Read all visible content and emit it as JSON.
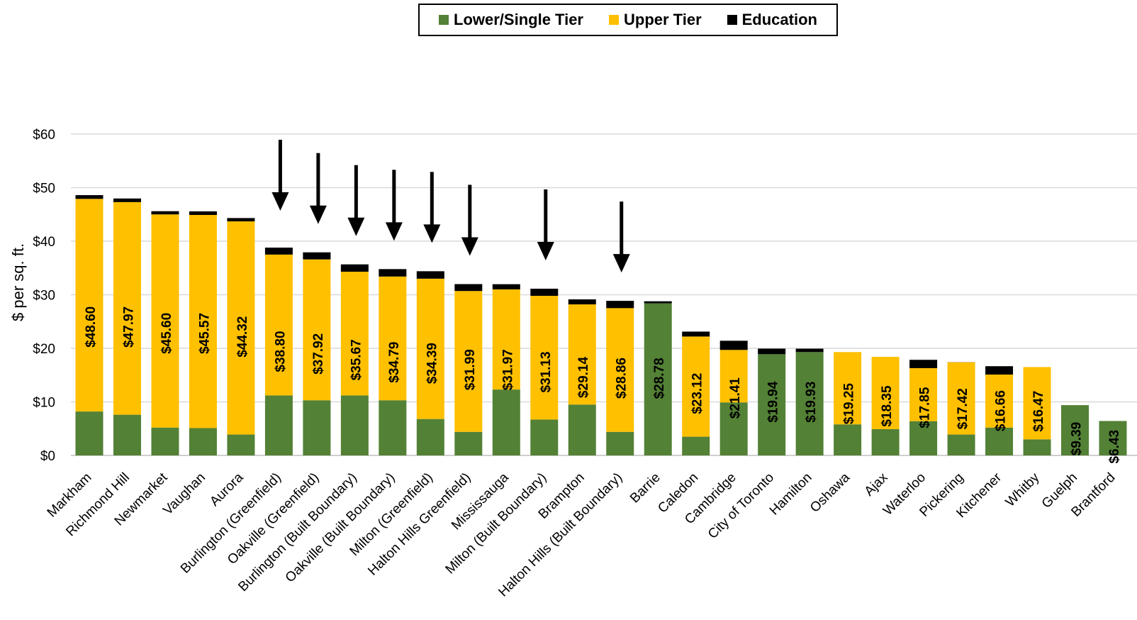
{
  "legend": {
    "items": [
      {
        "label": "Lower/Single Tier",
        "color": "#538135"
      },
      {
        "label": "Upper Tier",
        "color": "#FFC000"
      },
      {
        "label": "Education",
        "color": "#000000"
      }
    ]
  },
  "chart_data": {
    "type": "bar",
    "stacked": true,
    "title": "",
    "xlabel": "",
    "ylabel": "$ per sq. ft.",
    "ylim": [
      0,
      60
    ],
    "yticks": [
      "$0",
      "$10",
      "$20",
      "$30",
      "$40",
      "$50",
      "$60"
    ],
    "grid": true,
    "legend_position": "top",
    "categories": [
      "Markham",
      "Richmond Hill",
      "Newmarket",
      "Vaughan",
      "Aurora",
      "Burlington (Greenfield)",
      "Oakville (Greenfield)",
      "Burlington (Built Boundary)",
      "Oakville (Built Boundary)",
      "Milton (Greenfield)",
      "Halton Hills Greenfield)",
      "Mississauga",
      "Milton (Built Boundary)",
      "Brampton",
      "Halton Hills (Built Boundary)",
      "Barrie",
      "Caledon",
      "Cambridge",
      "City of Toronto",
      "Hamilton",
      "Oshawa",
      "Ajax",
      "Waterloo",
      "Pickering",
      "Kitchener",
      "Whitby",
      "Guelph",
      "Brantford"
    ],
    "series": [
      {
        "name": "Lower/Single Tier",
        "color": "#538135",
        "values": [
          8.2,
          7.6,
          5.2,
          5.1,
          3.9,
          11.2,
          10.3,
          11.2,
          10.3,
          6.8,
          4.4,
          12.3,
          6.7,
          9.5,
          4.4,
          28.4,
          3.5,
          9.9,
          18.9,
          19.3,
          5.8,
          4.9,
          6.4,
          3.9,
          5.2,
          3.0,
          9.39,
          6.43
        ]
      },
      {
        "name": "Upper Tier",
        "color": "#FFC000",
        "values": [
          39.7,
          39.7,
          39.8,
          39.8,
          39.8,
          26.3,
          26.3,
          23.1,
          23.1,
          26.2,
          26.3,
          18.7,
          23.1,
          18.7,
          23.1,
          0,
          18.7,
          9.8,
          0,
          0,
          13.5,
          13.5,
          9.9,
          13.5,
          9.9,
          13.5,
          0,
          0
        ]
      },
      {
        "name": "Education",
        "color": "#000000",
        "values": [
          0.7,
          0.67,
          0.6,
          0.67,
          0.62,
          1.3,
          1.32,
          1.37,
          1.39,
          1.39,
          1.29,
          0.97,
          1.33,
          0.94,
          1.36,
          0.38,
          0.92,
          1.71,
          1.04,
          0.63,
          0,
          0,
          1.55,
          0.02,
          1.56,
          0,
          0,
          0
        ]
      }
    ],
    "totals": [
      "$48.60",
      "$47.97",
      "$45.60",
      "$45.57",
      "$44.32",
      "$38.80",
      "$37.92",
      "$35.67",
      "$34.79",
      "$34.39",
      "$31.99",
      "$31.97",
      "$31.13",
      "$29.14",
      "$28.86",
      "$28.78",
      "$23.12",
      "$21.41",
      "$19.94",
      "$19.93",
      "$19.25",
      "$18.35",
      "$17.85",
      "$17.42",
      "$16.66",
      "$16.47",
      "$9.39",
      "$6.43"
    ],
    "annotations": {
      "arrows_over": [
        "Burlington (Greenfield)",
        "Oakville (Greenfield)",
        "Burlington (Built Boundary)",
        "Oakville (Built Boundary)",
        "Milton (Greenfield)",
        "Halton Hills Greenfield)",
        "Milton (Built Boundary)",
        "Halton Hills (Built Boundary)"
      ]
    }
  }
}
